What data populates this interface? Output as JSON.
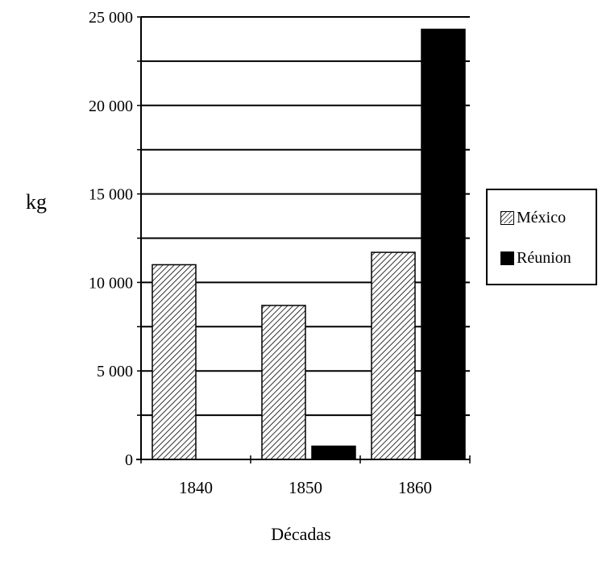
{
  "chart_data": {
    "type": "bar",
    "xlabel": "Décadas",
    "ylabel": "kg",
    "categories": [
      "1840",
      "1850",
      "1860"
    ],
    "series": [
      {
        "name": "México",
        "values": [
          11000,
          8700,
          11700
        ],
        "pattern": "diagonal-hatch",
        "color": "#000000"
      },
      {
        "name": "Réunion",
        "values": [
          0,
          750,
          24300
        ],
        "pattern": "solid",
        "color": "#000000"
      }
    ],
    "ylim": [
      0,
      25000
    ],
    "yticks": [
      0,
      5000,
      10000,
      15000,
      20000,
      25000
    ],
    "ytick_labels": [
      "0",
      "5 000",
      "10 000",
      "15 000",
      "20 000",
      "25 000"
    ],
    "minor_gridlines": [
      2500,
      7500,
      12500,
      17500,
      22500
    ],
    "grid": true,
    "legend_position": "right"
  }
}
